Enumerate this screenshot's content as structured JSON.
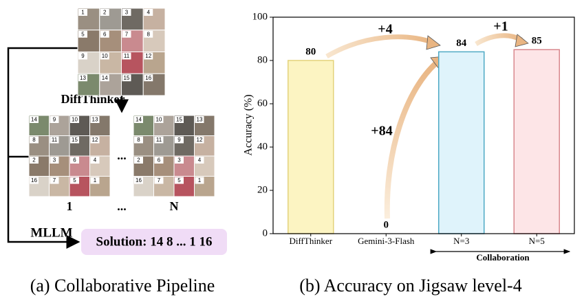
{
  "pipeline": {
    "caption": "(a) Collaborative Pipeline",
    "input_tiles": [
      "1",
      "2",
      "3",
      "4",
      "5",
      "6",
      "7",
      "8",
      "9",
      "10",
      "11",
      "12",
      "13",
      "14",
      "15",
      "16"
    ],
    "model_label": "DiffThinker",
    "outputs": [
      {
        "tiles": [
          "14",
          "9",
          "10",
          "13",
          "8",
          "11",
          "15",
          "12",
          "2",
          "3",
          "6",
          "4",
          "16",
          "7",
          "5",
          "1"
        ],
        "label": "1"
      },
      {
        "tiles": [
          "14",
          "10",
          "15",
          "13",
          "8",
          "11",
          "9",
          "12",
          "2",
          "6",
          "3",
          "4",
          "16",
          "7",
          "5",
          "1"
        ],
        "label": "N"
      }
    ],
    "ellipsis": "...",
    "ellipsis_label": "...",
    "judge_label": "MLLM",
    "solution": "Solution: 14 8 ... 1 16"
  },
  "chart_data": {
    "type": "bar",
    "caption": "(b) Accuracy on Jigsaw level-4",
    "y_label": "Accuracy (%)",
    "categories": [
      "DiffThinker",
      "Gemini-3-Flash",
      "N=3",
      "N=5"
    ],
    "values": [
      80,
      0,
      84,
      85
    ],
    "colors": [
      "#fcf4c2",
      "#e6e6e6",
      "#dff3fb",
      "#fde5e7"
    ],
    "edge_colors": [
      "#e3d27a",
      "#bbbbbb",
      "#4ea9c4",
      "#d8878d"
    ],
    "ylim": [
      0,
      100
    ],
    "yticks": [
      0,
      20,
      40,
      60,
      80,
      100
    ],
    "annotations": [
      "+4",
      "+1",
      "+84"
    ],
    "group_label": "Collaboration"
  }
}
